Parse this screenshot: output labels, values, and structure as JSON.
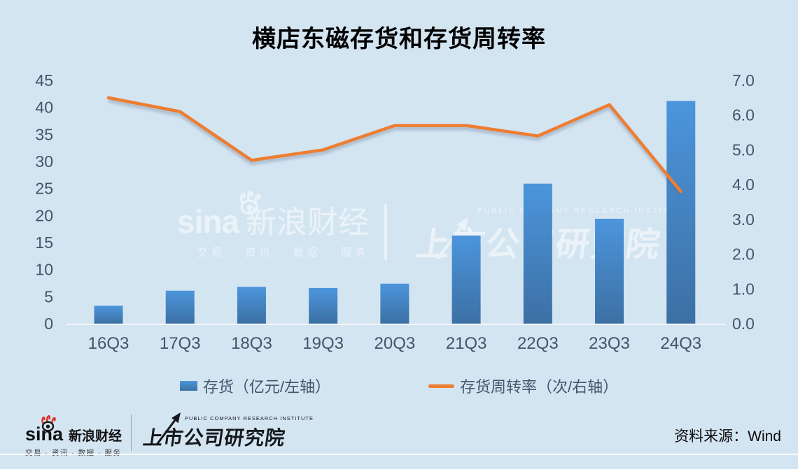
{
  "title": "横店东磁存货和存货周转率",
  "chart_data": {
    "type": "bar+line",
    "categories": [
      "16Q3",
      "17Q3",
      "18Q3",
      "19Q3",
      "20Q3",
      "21Q3",
      "22Q3",
      "23Q3",
      "24Q3"
    ],
    "series": [
      {
        "name": "存货（亿元/左轴）",
        "type": "bar",
        "axis": "left",
        "values": [
          3.3,
          6.1,
          6.8,
          6.6,
          7.4,
          16.3,
          25.9,
          19.4,
          41.2
        ]
      },
      {
        "name": "存货周转率（次/右轴）",
        "type": "line",
        "axis": "right",
        "values": [
          6.5,
          6.1,
          4.7,
          5.0,
          5.7,
          5.7,
          5.4,
          6.3,
          3.8
        ]
      }
    ],
    "left_axis": {
      "min": 0,
      "max": 45,
      "ticks": [
        "0",
        "5",
        "10",
        "15",
        "20",
        "25",
        "30",
        "35",
        "40",
        "45"
      ]
    },
    "right_axis": {
      "min": 0,
      "max": 7,
      "ticks": [
        "0.0",
        "1.0",
        "2.0",
        "3.0",
        "4.0",
        "5.0",
        "6.0",
        "7.0"
      ]
    },
    "grid": false,
    "legend_position": "bottom",
    "colors": {
      "bar_top": "#4C95DC",
      "bar_bottom": "#3C70A4",
      "line": "#ED7D31",
      "axis_text": "#44546A",
      "background": "#D4E5F2"
    }
  },
  "brand": {
    "sina_logo": "sina",
    "sina_name": "新浪财经",
    "sina_tagline": "交易 · 资讯 · 数据 · 服务",
    "institute_en": "PUBLIC COMPANY RESEARCH INSTITUTE",
    "institute_name": "上市公司研究院"
  },
  "footer": {
    "source": "资料来源：Wind"
  }
}
